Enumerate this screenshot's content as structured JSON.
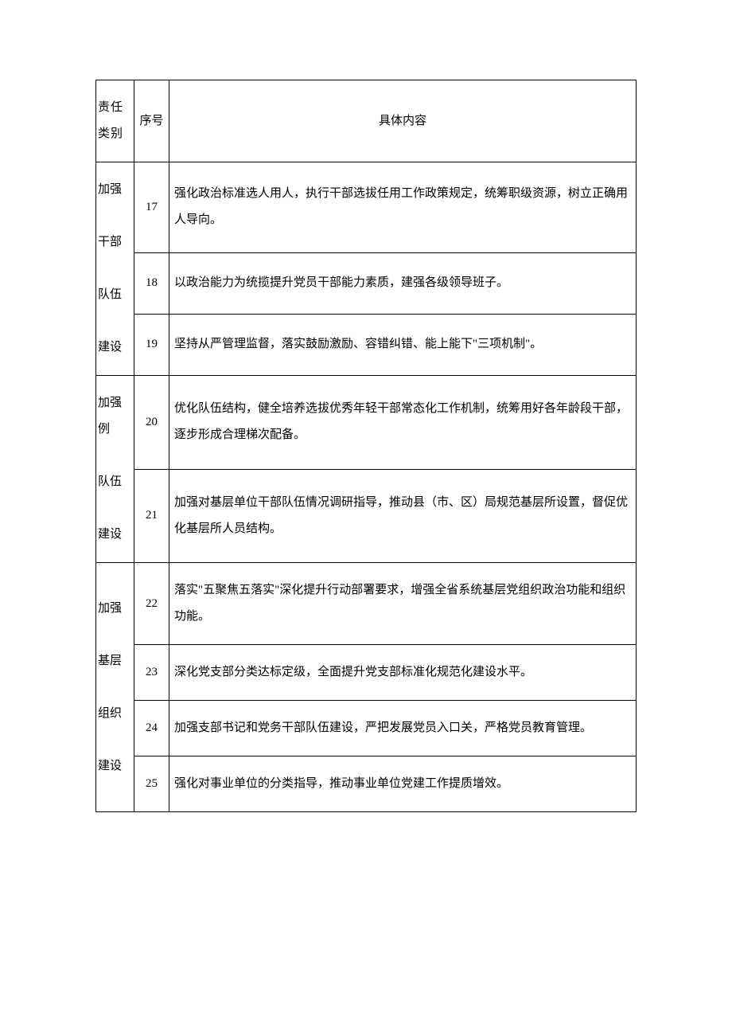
{
  "table": {
    "category_width": 48,
    "seq_width": 44,
    "border_color": "#000000",
    "background_color": "#ffffff",
    "text_color": "#000000",
    "font_size": 15,
    "line_height": 2.2,
    "header": {
      "category": "责任类别",
      "seq": "序号",
      "content": "具体内容"
    },
    "sections": [
      {
        "category": "加强干部队伍建设",
        "rows": [
          {
            "seq": "17",
            "content": "强化政治标准选人用人，执行干部选拔任用工作政策规定，统筹职级资源，树立正确用人导向。"
          },
          {
            "seq": "18",
            "content": "以政治能力为统揽提升党员干部能力素质，建强各级领导班子。"
          },
          {
            "seq": "19",
            "content": "坚持从严管理监督，落实鼓励激励、容错纠错、能上能下\"三项机制\"。"
          }
        ]
      },
      {
        "category": "加强例队伍建设",
        "rows": [
          {
            "seq": "20",
            "content": "优化队伍结构，健全培养选拔优秀年轻干部常态化工作机制，统筹用好各年龄段干部，逐步形成合理梯次配备。"
          },
          {
            "seq": "21",
            "content": "加强对基层单位干部队伍情况调研指导，推动县（市、区）局规范基层所设置，督促优化基层所人员结构。"
          }
        ]
      },
      {
        "category": "加强基层组织建设",
        "rows": [
          {
            "seq": "22",
            "content": "落实\"五聚焦五落实\"深化提升行动部署要求，增强全省系统基层党组织政治功能和组织功能。"
          },
          {
            "seq": "23",
            "content": "深化党支部分类达标定级，全面提升党支部标准化规范化建设水平。"
          },
          {
            "seq": "24",
            "content": "加强支部书记和党务干部队伍建设，严把发展党员入口关，严格党员教育管理。"
          },
          {
            "seq": "25",
            "content": "强化对事业单位的分类指导，推动事业单位党建工作提质增效。"
          }
        ]
      }
    ]
  }
}
